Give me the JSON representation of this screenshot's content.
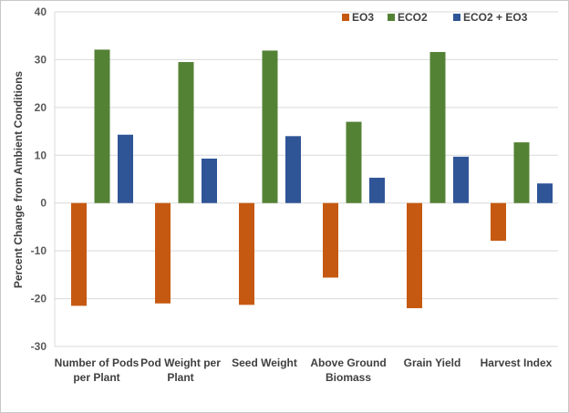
{
  "chart_data": {
    "type": "bar",
    "title": "",
    "xlabel": "",
    "ylabel": "Percent Change from Ambient Conditions",
    "ylim": [
      -30,
      40
    ],
    "yticks": [
      -30,
      -20,
      -10,
      0,
      10,
      20,
      30,
      40
    ],
    "grid": true,
    "legend_position": "top-right",
    "categories": [
      [
        "Number of Pods",
        "per Plant"
      ],
      [
        "Pod Weight per",
        "Plant"
      ],
      [
        "Seed Weight"
      ],
      [
        "Above Ground",
        "Biomass"
      ],
      [
        "Grain Yield"
      ],
      [
        "Harvest Index"
      ]
    ],
    "series": [
      {
        "name": "EO3",
        "color": "#c65911",
        "values": [
          -21.5,
          -21.0,
          -21.3,
          -15.6,
          -22.0,
          -7.9
        ]
      },
      {
        "name": "ECO2",
        "color": "#548235",
        "values": [
          32.1,
          29.5,
          31.9,
          17.0,
          31.6,
          12.7
        ]
      },
      {
        "name": "ECO2 + EO3",
        "color": "#2f5597",
        "values": [
          14.3,
          9.3,
          14.0,
          5.3,
          9.7,
          4.1
        ]
      }
    ]
  }
}
